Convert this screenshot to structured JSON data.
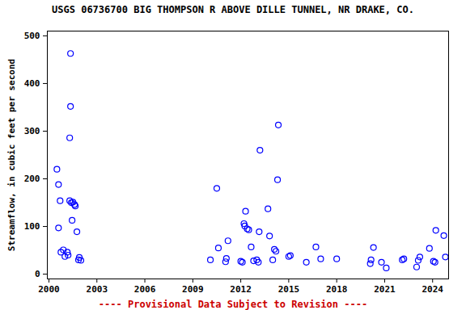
{
  "chart_data": {
    "type": "scatter",
    "title": "USGS 06736700 BIG THOMPSON R ABOVE DILLE TUNNEL, NR DRAKE, CO.",
    "y_label": "Streamflow, in cubic feet per second",
    "caption": "---- Provisional Data Subject to Revision ----",
    "color": "#0000ff",
    "marker": "circle",
    "grid": false,
    "xlim": [
      1999.9,
      2025.0
    ],
    "xticks": [
      2000,
      2003,
      2006,
      2009,
      2012,
      2015,
      2018,
      2021,
      2024
    ],
    "ylim": [
      -10,
      510
    ],
    "yticks": [
      0,
      100,
      200,
      300,
      400,
      500
    ],
    "x": [
      2000.5,
      2000.6,
      2000.7,
      2000.6,
      2000.75,
      2000.9,
      2001.0,
      2001.15,
      2001.2,
      2001.3,
      2001.35,
      2001.35,
      2001.3,
      2001.4,
      2001.5,
      2001.6,
      2001.65,
      2001.45,
      2001.75,
      2001.85,
      2001.9,
      2002.0,
      2010.1,
      2010.5,
      2010.6,
      2011.05,
      2011.1,
      2011.2,
      2012.0,
      2012.1,
      2012.2,
      2012.25,
      2012.3,
      2012.4,
      2012.5,
      2012.65,
      2012.8,
      2013.0,
      2013.1,
      2013.15,
      2013.2,
      2013.7,
      2013.8,
      2014.0,
      2014.1,
      2014.2,
      2014.3,
      2014.35,
      2015.0,
      2015.1,
      2016.1,
      2016.7,
      2017.0,
      2018.0,
      2020.1,
      2020.15,
      2020.3,
      2020.8,
      2021.1,
      2022.1,
      2022.2,
      2023.0,
      2023.1,
      2023.2,
      2023.8,
      2024.05,
      2024.15,
      2024.2,
      2024.7,
      2024.8
    ],
    "values": [
      220,
      188,
      154,
      97,
      46,
      51,
      37,
      46,
      40,
      154,
      463,
      352,
      286,
      150,
      151,
      146,
      143,
      113,
      89,
      30,
      35,
      29,
      30,
      180,
      55,
      26,
      33,
      70,
      27,
      25,
      106,
      101,
      132,
      95,
      93,
      57,
      28,
      30,
      25,
      89,
      260,
      137,
      80,
      30,
      52,
      48,
      198,
      313,
      37,
      39,
      25,
      57,
      32,
      32,
      22,
      30,
      56,
      25,
      13,
      30,
      32,
      15,
      29,
      36,
      54,
      27,
      25,
      92,
      81,
      36
    ]
  }
}
